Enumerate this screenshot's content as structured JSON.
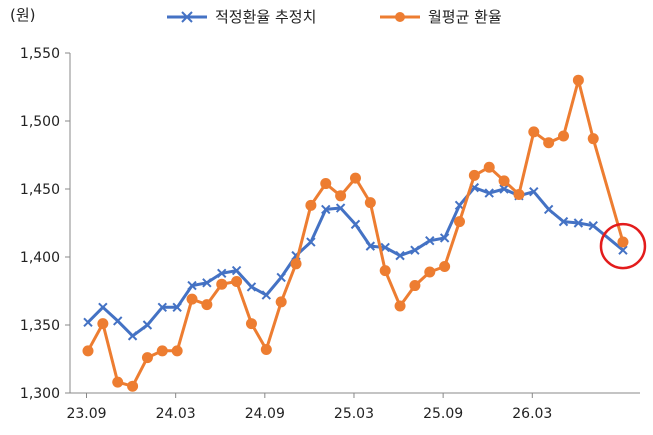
{
  "chart_data": {
    "type": "line",
    "unit_label": "(원)",
    "ylim": [
      1300,
      1550
    ],
    "yticks": [
      1300,
      1350,
      1400,
      1450,
      1500,
      1550
    ],
    "ytick_labels": [
      "1,300",
      "1,350",
      "1,400",
      "1,450",
      "1,500",
      "1,550"
    ],
    "xtick_labels": [
      "23.09",
      "24.03",
      "24.09",
      "25.03",
      "25.09",
      "26.03"
    ],
    "xtick_indices": [
      0,
      6,
      12,
      18,
      24,
      30
    ],
    "x": [
      "23.09",
      "23.10",
      "23.11",
      "23.12",
      "24.01",
      "24.02",
      "24.03",
      "24.04",
      "24.05",
      "24.06",
      "24.07",
      "24.08",
      "24.09",
      "24.10",
      "24.11",
      "24.12",
      "25.01",
      "25.02",
      "25.03",
      "25.04",
      "25.05",
      "25.06",
      "25.07",
      "25.08",
      "25.09",
      "25.10",
      "25.11",
      "25.12",
      "26.01",
      "26.02",
      "26.03",
      "26.04",
      "26.05",
      "26.06",
      "26.07",
      "26.08",
      "26.09"
    ],
    "grid": false,
    "legend_position": "top",
    "series": [
      {
        "name": "적정환율 추정치",
        "color": "#4472C4",
        "marker": "x",
        "values": [
          1352,
          1363,
          1353,
          1342,
          1350,
          1363,
          1363,
          1379,
          1381,
          1388,
          1390,
          1378,
          1372,
          1385,
          1401,
          1411,
          1435,
          1436,
          1424,
          1408,
          1407,
          1401,
          1405,
          1412,
          1414,
          1438,
          1451,
          1447,
          1450,
          1445,
          1448,
          1435,
          1426,
          1425,
          1423,
          null,
          1405
        ]
      },
      {
        "name": "월평균 환율",
        "color": "#ED7D31",
        "marker": "circle",
        "values": [
          1331,
          1351,
          1308,
          1305,
          1326,
          1331,
          1331,
          1369,
          1365,
          1380,
          1382,
          1351,
          1332,
          1367,
          1395,
          1438,
          1454,
          1445,
          1458,
          1440,
          1390,
          1364,
          1379,
          1389,
          1393,
          1426,
          1460,
          1466,
          1456,
          1446,
          1492,
          1484,
          1489,
          1530,
          1487,
          null,
          1411
        ]
      }
    ],
    "highlight": {
      "index": 36,
      "color": "#E31C1C"
    }
  }
}
